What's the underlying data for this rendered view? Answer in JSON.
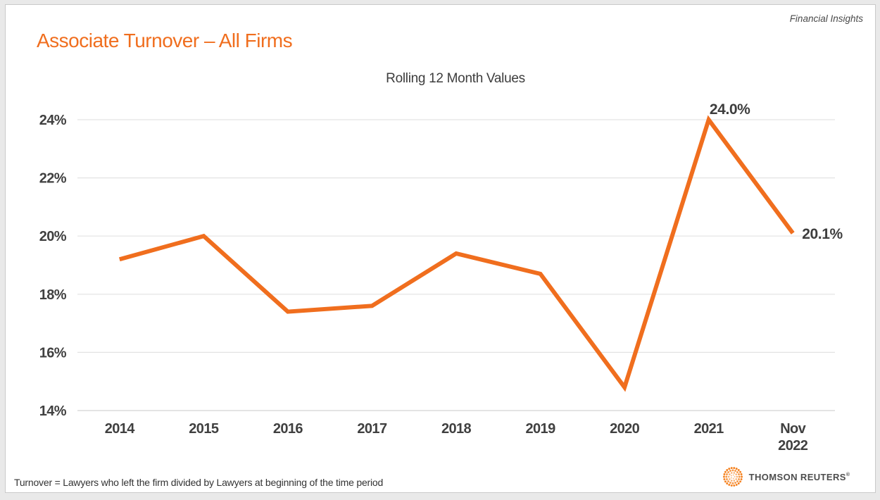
{
  "header": {
    "brand_tag": "Financial Insights",
    "title": "Associate Turnover – All Firms",
    "title_color": "#F06E1E"
  },
  "chart_data": {
    "type": "line",
    "title": "Rolling 12 Month Values",
    "categories": [
      "2014",
      "2015",
      "2016",
      "2017",
      "2018",
      "2019",
      "2020",
      "2021",
      "Nov\n2022"
    ],
    "series": [
      {
        "name": "Associate Turnover",
        "values": [
          19.2,
          20.0,
          17.4,
          17.6,
          19.4,
          18.7,
          14.8,
          24.0,
          20.1
        ]
      }
    ],
    "ylim": [
      14,
      24
    ],
    "ytick_step": 2,
    "ytick_suffix": "%",
    "grid": true,
    "legend": "none",
    "line_color": "#F06E1E",
    "grid_color": "#e3e3e3",
    "axis_line_color": "#d4d4d4",
    "label_color": "#404040",
    "annotations": [
      {
        "index": 7,
        "label": "24.0%",
        "placement": "above"
      },
      {
        "index": 8,
        "label": "20.1%",
        "placement": "right"
      }
    ]
  },
  "footer": {
    "note": "Turnover = Lawyers who left the firm divided by Lawyers at beginning of the time period",
    "logo_text": "THOMSON REUTERS",
    "logo_reg": "®",
    "logo_dot_color": "#F58220"
  }
}
